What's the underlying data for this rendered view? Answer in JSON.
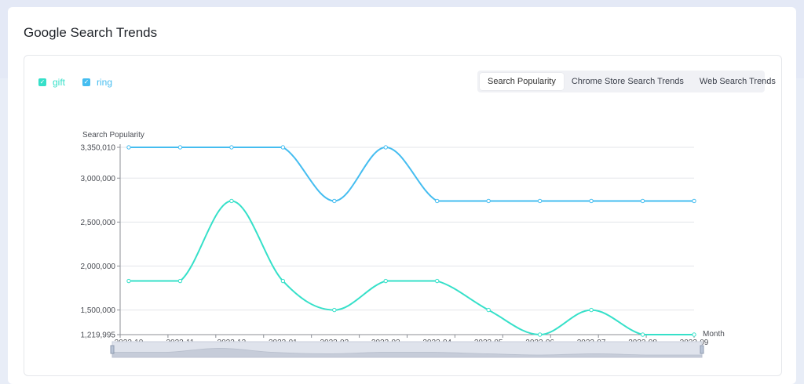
{
  "page_title": "Google Search Trends",
  "legend": [
    {
      "label": "gift",
      "color": "#36e0c9"
    },
    {
      "label": "ring",
      "color": "#45bdf0"
    }
  ],
  "tabs": [
    {
      "label": "Search Popularity",
      "active": true
    },
    {
      "label": "Chrome Store Search Trends",
      "active": false
    },
    {
      "label": "Web Search Trends",
      "active": false
    }
  ],
  "chart_data": {
    "type": "line",
    "smooth": true,
    "ylabel": "Search Popularity",
    "xlabel": "Month",
    "categories": [
      "2022-10",
      "2022-11",
      "2022-12",
      "2023-01",
      "2023-02",
      "2023-03",
      "2023-04",
      "2023-05",
      "2023-06",
      "2023-07",
      "2023-08",
      "2023-09"
    ],
    "ylim": [
      1219995,
      3350010
    ],
    "yticks": [
      {
        "value": 1219995,
        "label": "1,219,995"
      },
      {
        "value": 1500000,
        "label": "1,500,000"
      },
      {
        "value": 2000000,
        "label": "2,000,000"
      },
      {
        "value": 2500000,
        "label": "2,500,000"
      },
      {
        "value": 3000000,
        "label": "3,000,000"
      },
      {
        "value": 3350010,
        "label": "3,350,010"
      }
    ],
    "series": [
      {
        "name": "gift",
        "color": "#36e0c9",
        "values": [
          1830000,
          1830000,
          2740000,
          1830000,
          1500000,
          1830000,
          1830000,
          1500000,
          1219995,
          1500000,
          1219995,
          1219995
        ]
      },
      {
        "name": "ring",
        "color": "#45bdf0",
        "values": [
          3350010,
          3350010,
          3350010,
          3350010,
          2740000,
          3350010,
          2740000,
          2740000,
          2740000,
          2740000,
          2740000,
          2740000
        ]
      }
    ],
    "grid": true,
    "legend_position": "top-left",
    "data_zoom_slider": true
  }
}
